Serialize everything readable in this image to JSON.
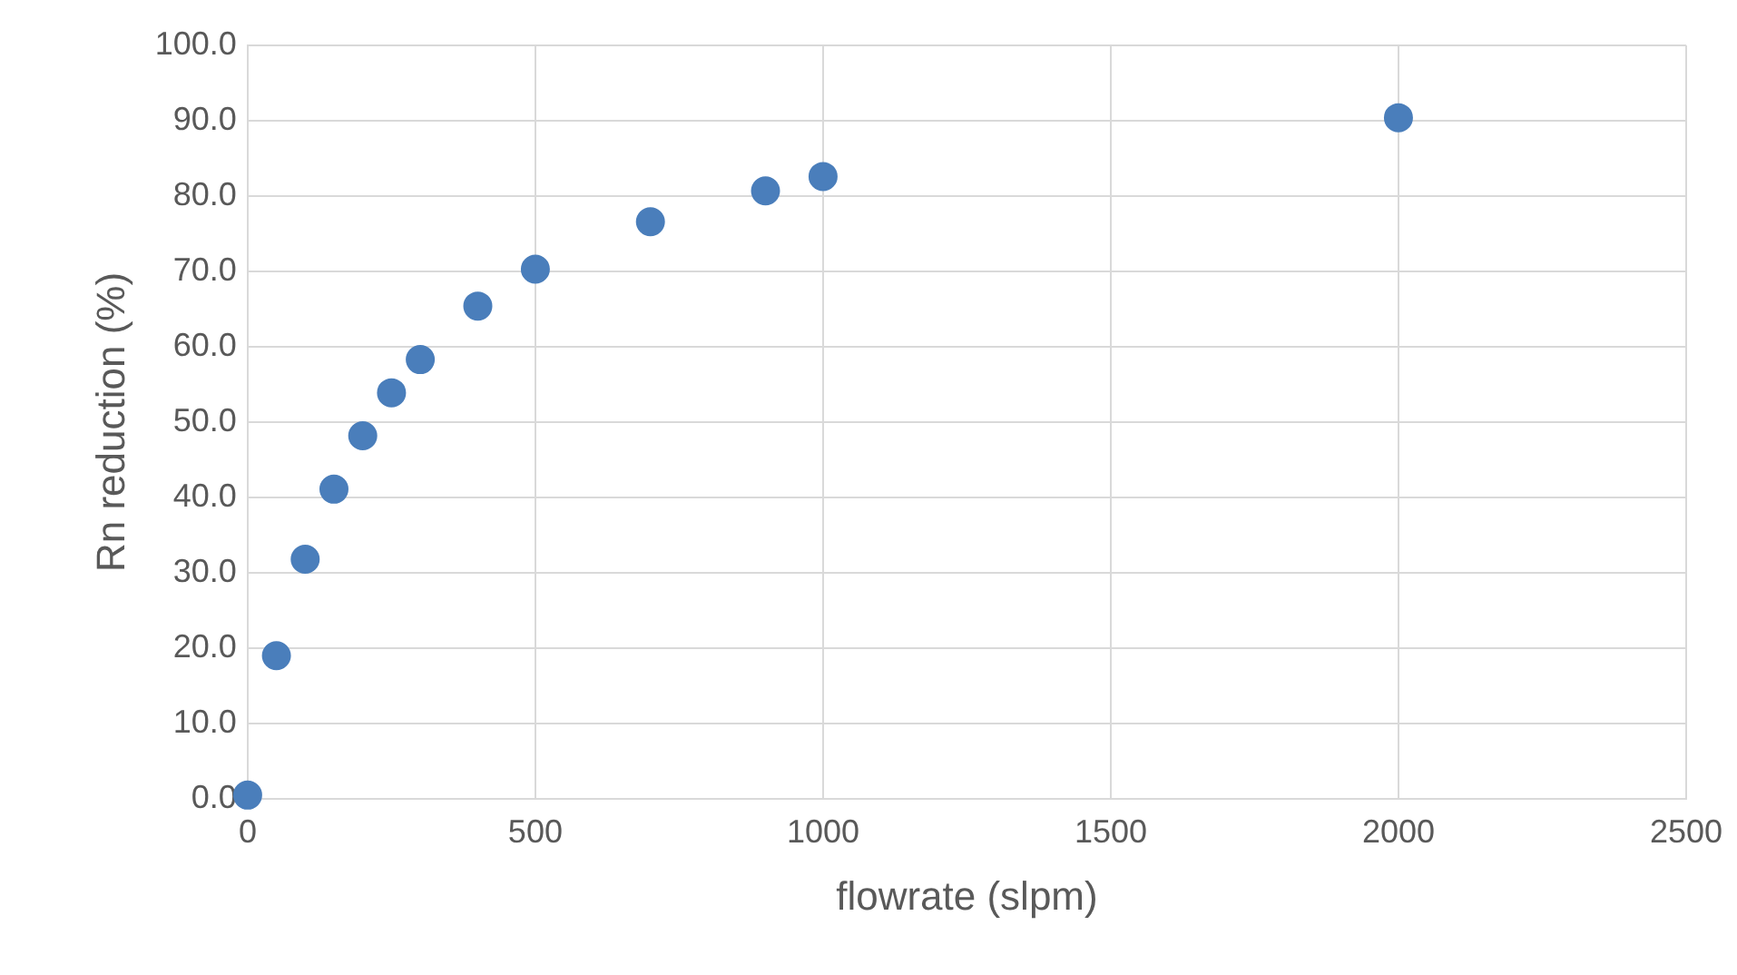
{
  "chart_data": {
    "type": "scatter",
    "xlabel": "flowrate (slpm)",
    "ylabel": "Rn reduction (%)",
    "x": [
      0,
      50,
      100,
      150,
      200,
      250,
      300,
      400,
      500,
      700,
      900,
      1000,
      2000
    ],
    "series": [
      {
        "color": "#4a7ebb",
        "values": [
          0.5,
          19.0,
          31.8,
          41.1,
          48.2,
          53.9,
          58.3,
          65.4,
          70.3,
          76.6,
          80.7,
          82.6,
          90.4
        ]
      }
    ],
    "xlim": [
      0,
      2500
    ],
    "xticks": [
      0,
      500,
      1000,
      1500,
      2000,
      2500
    ],
    "ylim": [
      0,
      100
    ],
    "yticks": [
      {
        "value": 0,
        "label": "0.0"
      },
      {
        "value": 10,
        "label": "10.0"
      },
      {
        "value": 20,
        "label": "20.0"
      },
      {
        "value": 30,
        "label": "30.0"
      },
      {
        "value": 40,
        "label": "40.0"
      },
      {
        "value": 50,
        "label": "50.0"
      },
      {
        "value": 60,
        "label": "60.0"
      },
      {
        "value": 70,
        "label": "70.0"
      },
      {
        "value": 80,
        "label": "80.0"
      },
      {
        "value": 90,
        "label": "90.0"
      },
      {
        "value": 100,
        "label": "100.0"
      }
    ],
    "grid": true,
    "legend": false,
    "marker": "circle"
  }
}
